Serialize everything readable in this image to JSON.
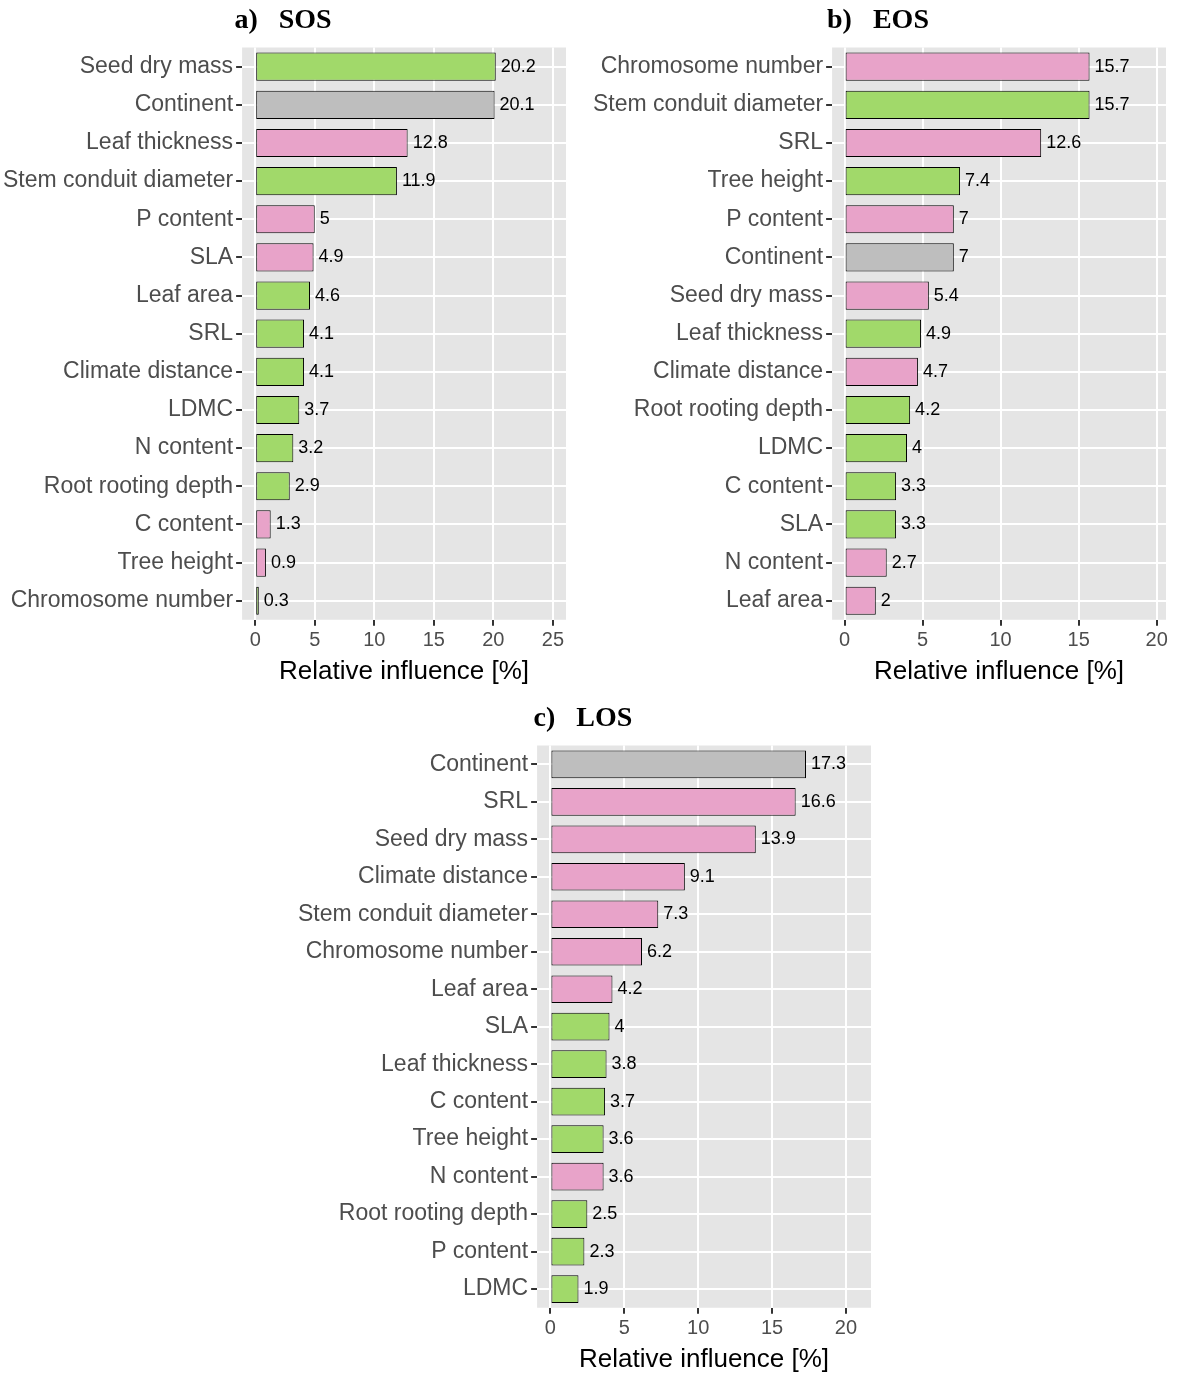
{
  "chart_data": [
    {
      "type": "bar",
      "orientation": "horizontal",
      "title": "a)   SOS",
      "xlabel": "Relative influence [%]",
      "categories": [
        "Seed dry mass",
        "Continent",
        "Leaf thickness",
        "Stem conduit diameter",
        "P content",
        "SLA",
        "Leaf area",
        "SRL",
        "Climate distance",
        "LDMC",
        "N content",
        "Root rooting depth",
        "C content",
        "Tree height",
        "Chromosome number"
      ],
      "values": [
        20.2,
        20.1,
        12.8,
        11.9,
        5,
        4.9,
        4.6,
        4.1,
        4.1,
        3.7,
        3.2,
        2.9,
        1.3,
        0.9,
        0.3
      ],
      "colors": [
        "#a1d96a",
        "#bebebe",
        "#e8a3c9",
        "#a1d96a",
        "#e8a3c9",
        "#e8a3c9",
        "#a1d96a",
        "#a1d96a",
        "#a1d96a",
        "#a1d96a",
        "#a1d96a",
        "#a1d96a",
        "#e8a3c9",
        "#e8a3c9",
        "#a1d96a"
      ],
      "xlim": [
        -1.1,
        26.1
      ],
      "xticks": [
        0,
        5,
        10,
        15,
        20,
        25
      ],
      "grid": true,
      "data_labels": true
    },
    {
      "type": "bar",
      "orientation": "horizontal",
      "title": "b)   EOS",
      "xlabel": "Relative influence [%]",
      "categories": [
        "Chromosome number",
        "Stem conduit diameter",
        "SRL",
        "Tree height",
        "P content",
        "Continent",
        "Seed dry mass",
        "Leaf thickness",
        "Climate distance",
        "Root rooting depth",
        "LDMC",
        "C content",
        "SLA",
        "N content",
        "Leaf area"
      ],
      "values": [
        15.7,
        15.7,
        12.6,
        7.4,
        7,
        7,
        5.4,
        4.9,
        4.7,
        4.2,
        4,
        3.3,
        3.3,
        2.7,
        2
      ],
      "colors": [
        "#e8a3c9",
        "#a1d96a",
        "#e8a3c9",
        "#a1d96a",
        "#e8a3c9",
        "#bebebe",
        "#e8a3c9",
        "#a1d96a",
        "#e8a3c9",
        "#a1d96a",
        "#a1d96a",
        "#a1d96a",
        "#a1d96a",
        "#e8a3c9",
        "#e8a3c9"
      ],
      "xlim": [
        -0.8,
        20.6
      ],
      "xticks": [
        0,
        5,
        10,
        15,
        20
      ],
      "grid": true,
      "data_labels": true
    },
    {
      "type": "bar",
      "orientation": "horizontal",
      "title": "c)   LOS",
      "xlabel": "Relative influence [%]",
      "categories": [
        "Continent",
        "SRL",
        "Seed dry mass",
        "Climate distance",
        "Stem conduit diameter",
        "Chromosome number",
        "Leaf area",
        "SLA",
        "Leaf thickness",
        "C content",
        "Tree height",
        "N content",
        "Root rooting depth",
        "P content",
        "LDMC"
      ],
      "values": [
        17.3,
        16.6,
        13.9,
        9.1,
        7.3,
        6.2,
        4.2,
        4,
        3.8,
        3.7,
        3.6,
        3.6,
        2.5,
        2.3,
        1.9
      ],
      "colors": [
        "#bebebe",
        "#e8a3c9",
        "#e8a3c9",
        "#e8a3c9",
        "#e8a3c9",
        "#e8a3c9",
        "#e8a3c9",
        "#a1d96a",
        "#a1d96a",
        "#a1d96a",
        "#a1d96a",
        "#e8a3c9",
        "#a1d96a",
        "#a1d96a",
        "#a1d96a"
      ],
      "xlim": [
        -0.9,
        21.7
      ],
      "xticks": [
        0,
        5,
        10,
        15,
        20
      ],
      "grid": true,
      "data_labels": true
    }
  ]
}
